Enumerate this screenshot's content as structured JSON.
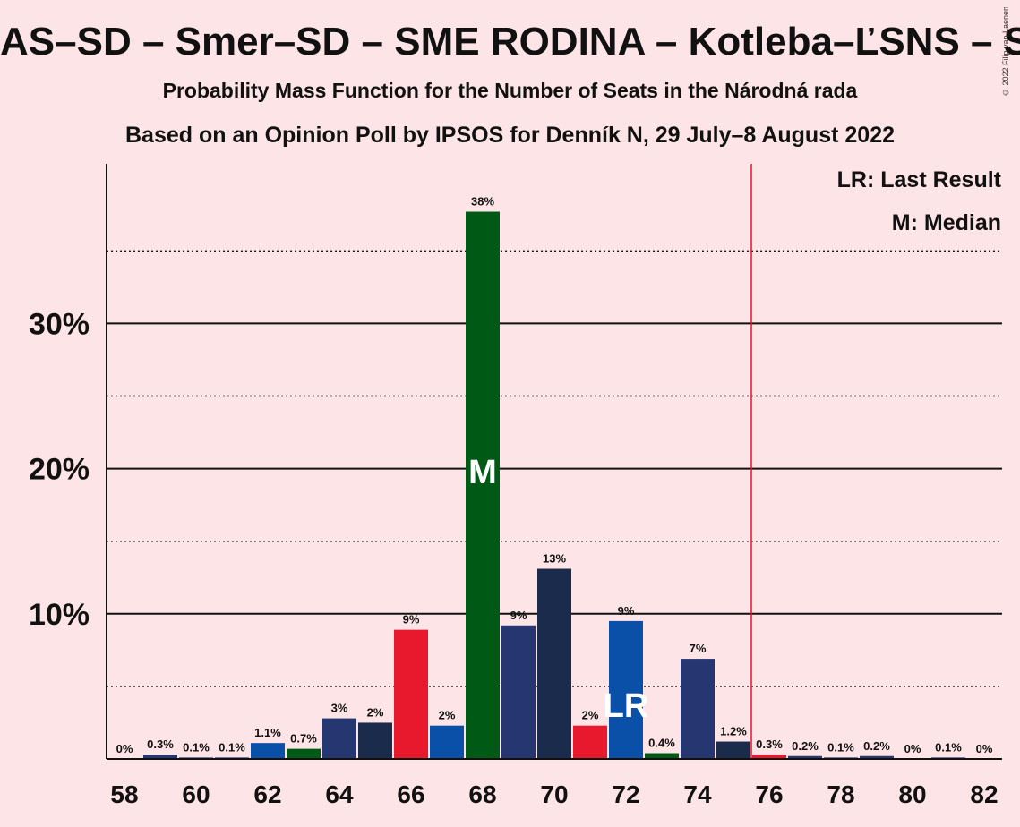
{
  "title": "AS–SD – Smer–SD – SME RODINA – Kotleba–ĽSNS – S",
  "subtitle1": "Probability Mass Function for the Number of Seats in the Národná rada",
  "subtitle2": "Based on an Opinion Poll by IPSOS for Denník N, 29 July–8 August 2022",
  "copyright": "© 2022 Filip van Laenen",
  "legend": {
    "last_result": "LR: Last Result",
    "median": "M: Median"
  },
  "colors": {
    "background": "#fde4e6",
    "majority_line": "#e8102a",
    "palette": {
      "navy": "#253670",
      "blue": "#0a4fa8",
      "green": "#005a15",
      "red": "#e8192c",
      "dark": "#1b2b4b"
    }
  },
  "chart_data": {
    "type": "bar",
    "x": [
      58,
      59,
      60,
      61,
      62,
      63,
      64,
      65,
      66,
      67,
      68,
      69,
      70,
      71,
      72,
      73,
      74,
      75,
      76,
      77,
      78,
      79,
      80,
      81,
      82
    ],
    "values": [
      0,
      0.3,
      0.1,
      0.1,
      1.1,
      0.7,
      2.8,
      2.5,
      8.9,
      2.3,
      37.7,
      9.2,
      13.1,
      2.3,
      9.5,
      0.4,
      6.9,
      1.2,
      0.3,
      0.2,
      0.1,
      0.2,
      0,
      0.1,
      0
    ],
    "labels": [
      "0%",
      "0.3%",
      "0.1%",
      "0.1%",
      "1.1%",
      "0.7%",
      "3%",
      "2%",
      "9%",
      "2%",
      "38%",
      "9%",
      "13%",
      "2%",
      "9%",
      "0.4%",
      "7%",
      "1.2%",
      "0.3%",
      "0.2%",
      "0.1%",
      "0.2%",
      "0%",
      "0.1%",
      "0%"
    ],
    "bar_colors": [
      "navy",
      "navy",
      "navy",
      "navy",
      "blue",
      "green",
      "navy",
      "dark",
      "red",
      "blue",
      "green",
      "navy",
      "dark",
      "red",
      "blue",
      "green",
      "navy",
      "dark",
      "red",
      "navy",
      "navy",
      "navy",
      "navy",
      "navy",
      "navy"
    ],
    "xticks": [
      58,
      60,
      62,
      64,
      66,
      68,
      70,
      72,
      74,
      76,
      78,
      80,
      82
    ],
    "yticks": [
      {
        "value": 10,
        "label": "10%"
      },
      {
        "value": 20,
        "label": "20%"
      },
      {
        "value": 30,
        "label": "30%"
      }
    ],
    "minor_gridlines": [
      5,
      15,
      25,
      35
    ],
    "ylim": [
      0,
      41
    ],
    "xlim": [
      57.5,
      82.5
    ],
    "median": {
      "x": 68,
      "marker": "M"
    },
    "last_result": {
      "x": 72,
      "marker": "LR"
    },
    "majority_threshold": 75.5,
    "legend_position": "top-right"
  }
}
